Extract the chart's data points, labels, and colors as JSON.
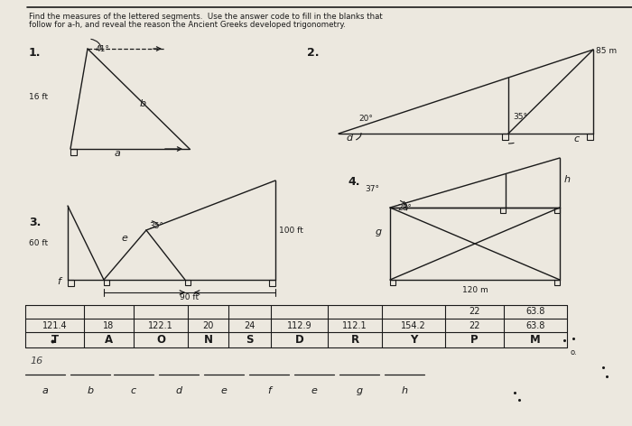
{
  "bg_color": "#ece8df",
  "line_color": "#1a1a1a",
  "title_line1": "Find the measures of the lettered segments.  Use the answer code to fill in the blanks that",
  "title_line2": "follow for a-h, and reveal the reason the Ancient Greeks developed trigonometry.",
  "table_row0": [
    "",
    "",
    "",
    "",
    "",
    "",
    "",
    "",
    "22",
    "63.8"
  ],
  "table_row1": [
    "121.4",
    "18",
    "122.1",
    "20",
    "24",
    "112.9",
    "112.1",
    "154.2",
    "22",
    "63.8"
  ],
  "table_row2": [
    "T",
    "A",
    "O",
    "N",
    "S",
    "D",
    "R",
    "Y",
    "P",
    "M"
  ],
  "answer_letters": [
    "a",
    "b",
    "c",
    "d",
    "e",
    "f",
    "e",
    "g",
    "h"
  ]
}
